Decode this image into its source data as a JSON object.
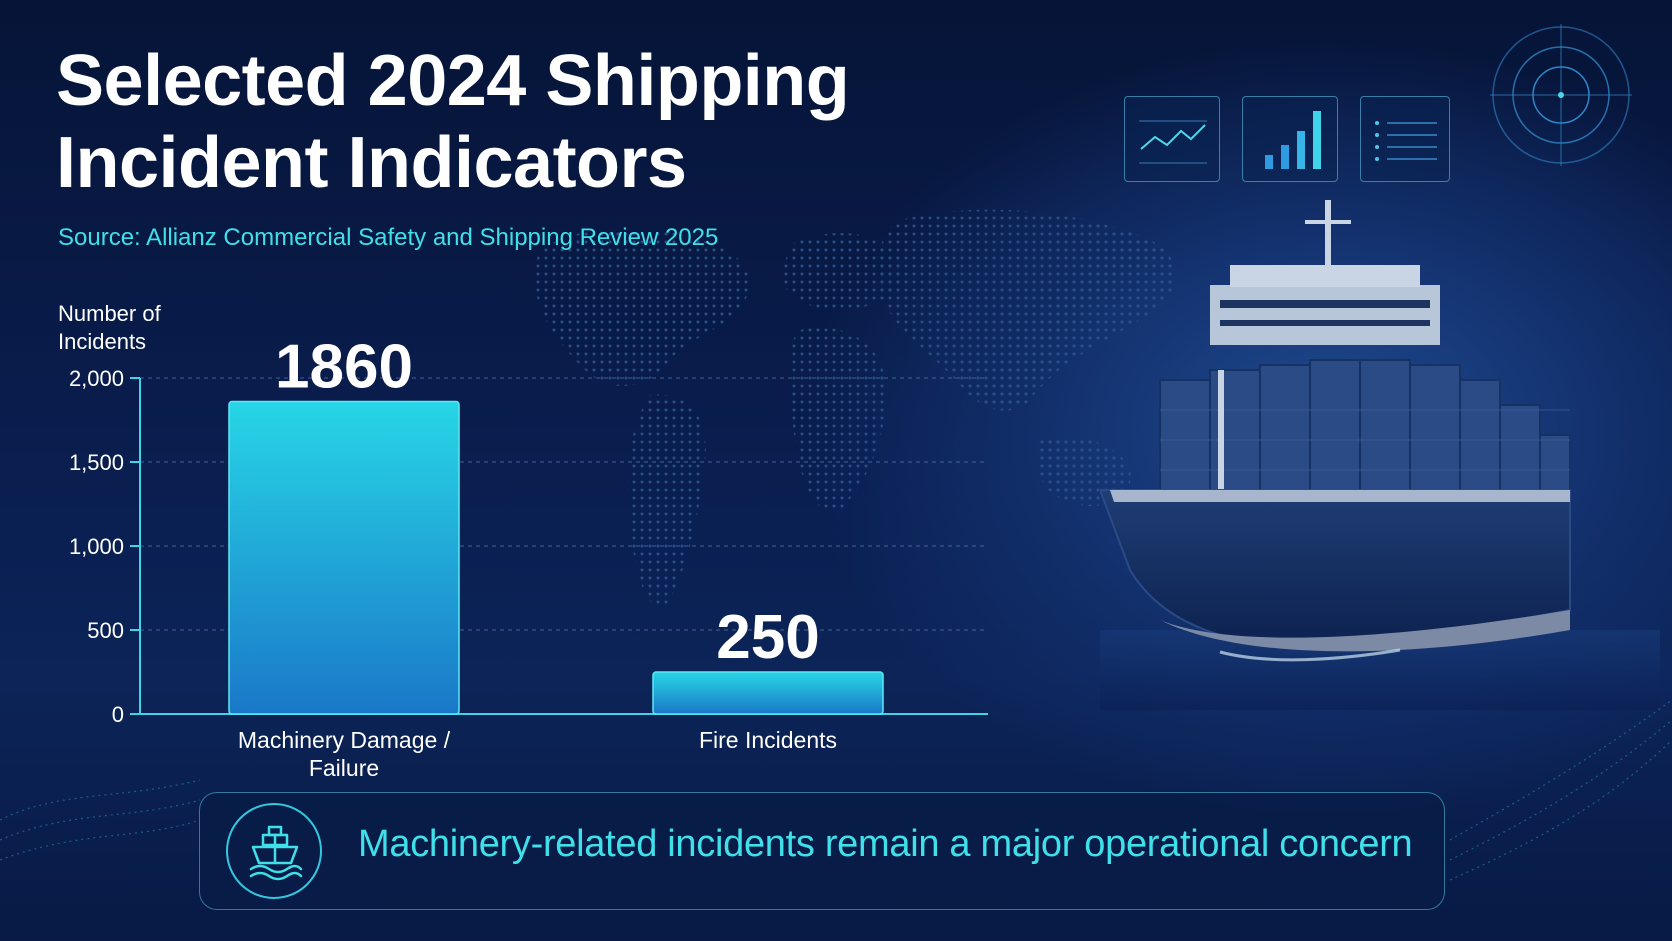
{
  "header": {
    "title_line1": "Selected 2024 Shipping",
    "title_line2": "Incident Indicators",
    "source": "Source: Allianz Commercial Safety and Shipping Review 2025"
  },
  "chart_data": {
    "type": "bar",
    "ylabel": "Number of Incidents",
    "ylabel_line1": "Number of",
    "ylabel_line2": "Incidents",
    "categories": [
      "Machinery Damage / Failure",
      "Fire Incidents"
    ],
    "category_lines": [
      [
        "Machinery Damage /",
        "Failure"
      ],
      [
        "Fire Incidents"
      ]
    ],
    "values": [
      1860,
      250
    ],
    "value_labels": [
      "1860",
      "250"
    ],
    "ylim": [
      0,
      2000
    ],
    "yticks": [
      0,
      500,
      1000,
      1500,
      2000
    ],
    "ytick_labels": [
      "0",
      "500",
      "1,000",
      "1,500",
      "2,000"
    ],
    "grid": true,
    "colors": {
      "bar_top": "#27d6e6",
      "bar_bottom": "#1a78c8",
      "axis": "#3fd4e8",
      "grid": "#5a7fb0"
    }
  },
  "callout": {
    "text": "Machinery-related incidents remain a major operational concern",
    "icon": "ship-icon"
  },
  "decor": {
    "icons": [
      "line-chart-icon",
      "bar-chart-icon",
      "list-icon",
      "radar-icon",
      "world-map-icon",
      "container-ship-icon"
    ]
  }
}
